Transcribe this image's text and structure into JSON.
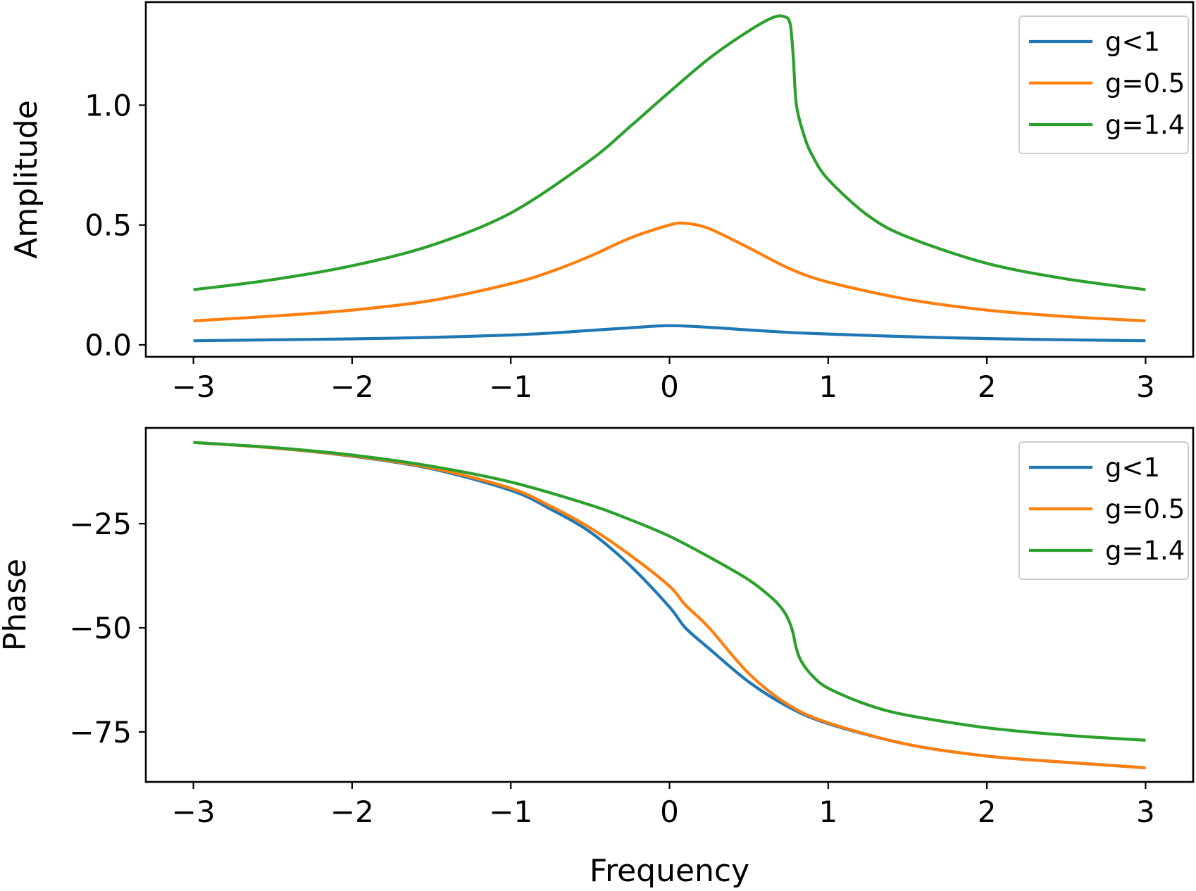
{
  "chart_data": [
    {
      "type": "line",
      "title": "",
      "xlabel": "",
      "ylabel": "Amplitude",
      "xlim": [
        -3.3,
        3.3
      ],
      "ylim": [
        -0.05,
        1.43
      ],
      "xticks": [
        -3,
        -2,
        -1,
        0,
        1,
        2,
        3
      ],
      "xtick_labels": [
        "−3",
        "−2",
        "−1",
        "0",
        "1",
        "2",
        "3"
      ],
      "yticks": [
        0.0,
        0.5,
        1.0
      ],
      "ytick_labels": [
        "0.0",
        "0.5",
        "1.0"
      ],
      "grid": false,
      "legend_position": "top-right",
      "series": [
        {
          "name": "g<1",
          "color": "#1f77b4",
          "x": [
            -3,
            -2.5,
            -2,
            -1.5,
            -1,
            -0.75,
            -0.5,
            -0.25,
            0,
            0.25,
            0.5,
            0.75,
            1,
            1.5,
            2,
            2.5,
            3
          ],
          "y": [
            0.017,
            0.021,
            0.025,
            0.031,
            0.041,
            0.049,
            0.06,
            0.071,
            0.08,
            0.073,
            0.062,
            0.052,
            0.045,
            0.034,
            0.026,
            0.021,
            0.017
          ]
        },
        {
          "name": "g=0.5",
          "color": "#ff7f0e",
          "x": [
            -3,
            -2.5,
            -2,
            -1.5,
            -1,
            -0.75,
            -0.5,
            -0.25,
            0,
            0.1,
            0.25,
            0.5,
            0.75,
            1,
            1.5,
            2,
            2.5,
            3
          ],
          "y": [
            0.1,
            0.12,
            0.145,
            0.185,
            0.255,
            0.305,
            0.37,
            0.445,
            0.5,
            0.507,
            0.485,
            0.405,
            0.32,
            0.262,
            0.19,
            0.145,
            0.118,
            0.1
          ]
        },
        {
          "name": "g=1.4",
          "color": "#2ca02c",
          "x": [
            -3,
            -2.5,
            -2,
            -1.5,
            -1,
            -0.5,
            -0.25,
            0,
            0.25,
            0.5,
            0.65,
            0.72,
            0.76,
            0.78,
            0.8,
            0.85,
            0.9,
            1,
            1.25,
            1.5,
            2,
            2.5,
            3
          ],
          "y": [
            0.23,
            0.272,
            0.33,
            0.415,
            0.55,
            0.77,
            0.91,
            1.055,
            1.195,
            1.31,
            1.365,
            1.37,
            1.34,
            1.2,
            1.0,
            0.87,
            0.79,
            0.69,
            0.54,
            0.45,
            0.34,
            0.275,
            0.23
          ]
        }
      ]
    },
    {
      "type": "line",
      "title": "",
      "xlabel": "Frequency",
      "ylabel": "Phase",
      "xlim": [
        -3.3,
        3.3
      ],
      "ylim": [
        -87,
        -2
      ],
      "xticks": [
        -3,
        -2,
        -1,
        0,
        1,
        2,
        3
      ],
      "xtick_labels": [
        "−3",
        "−2",
        "−1",
        "0",
        "1",
        "2",
        "3"
      ],
      "yticks": [
        -25,
        -50,
        -75
      ],
      "ytick_labels": [
        "−25",
        "−50",
        "−75"
      ],
      "grid": false,
      "legend_position": "top-right",
      "series": [
        {
          "name": "g<1",
          "color": "#1f77b4",
          "x": [
            -3,
            -2.5,
            -2,
            -1.5,
            -1,
            -0.75,
            -0.5,
            -0.25,
            0,
            0.1,
            0.25,
            0.5,
            0.75,
            1,
            1.5,
            2,
            2.5,
            3
          ],
          "y": [
            -5.5,
            -6.8,
            -8.8,
            -11.8,
            -17.0,
            -21.5,
            -27.0,
            -35.0,
            -45.0,
            -50.0,
            -55.0,
            -63.0,
            -69.0,
            -73.0,
            -78.0,
            -80.8,
            -82.3,
            -83.6
          ]
        },
        {
          "name": "g=0.5",
          "color": "#ff7f0e",
          "x": [
            -3,
            -2.5,
            -2,
            -1.5,
            -1,
            -0.75,
            -0.5,
            -0.25,
            0,
            0.1,
            0.25,
            0.5,
            0.75,
            1,
            1.5,
            2,
            2.5,
            3
          ],
          "y": [
            -5.5,
            -6.8,
            -8.7,
            -11.6,
            -16.5,
            -20.8,
            -26.0,
            -32.5,
            -40.0,
            -44.5,
            -50.0,
            -61.0,
            -68.5,
            -72.8,
            -78.0,
            -80.8,
            -82.3,
            -83.6
          ]
        },
        {
          "name": "g=1.4",
          "color": "#2ca02c",
          "x": [
            -3,
            -2.5,
            -2,
            -1.5,
            -1,
            -0.5,
            -0.25,
            0,
            0.25,
            0.5,
            0.65,
            0.72,
            0.76,
            0.78,
            0.8,
            0.83,
            0.9,
            1,
            1.25,
            1.5,
            2,
            2.5,
            3
          ],
          "y": [
            -5.5,
            -6.7,
            -8.5,
            -11.2,
            -15.0,
            -20.5,
            -24.0,
            -28.0,
            -33.0,
            -38.5,
            -43.0,
            -46.0,
            -49.0,
            -51.5,
            -55.0,
            -58.0,
            -61.5,
            -64.5,
            -68.5,
            -71.0,
            -74.0,
            -75.8,
            -77.0
          ]
        }
      ]
    }
  ]
}
